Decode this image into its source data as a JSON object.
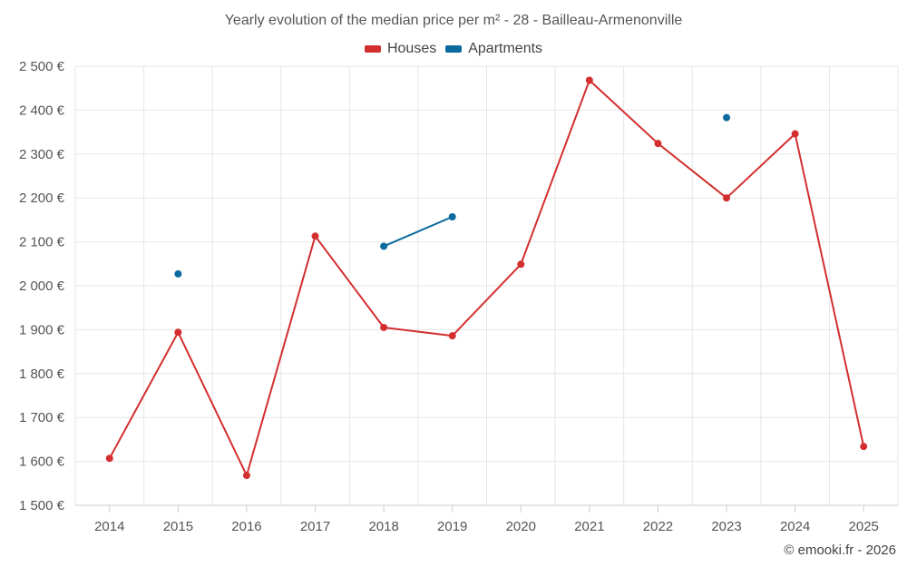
{
  "chart_data": {
    "type": "line",
    "title": "Yearly evolution of the median price per m² - 28 - Bailleau-Armenonville",
    "categories": [
      "2014",
      "2015",
      "2016",
      "2017",
      "2018",
      "2019",
      "2020",
      "2021",
      "2022",
      "2023",
      "2024",
      "2025"
    ],
    "ylim": [
      1500,
      2500
    ],
    "y_ticks": [
      1500,
      1600,
      1700,
      1800,
      1900,
      2000,
      2100,
      2200,
      2300,
      2400,
      2500
    ],
    "y_tick_labels": [
      "1 500 €",
      "1 600 €",
      "1 700 €",
      "1 800 €",
      "1 900 €",
      "2 000 €",
      "2 100 €",
      "2 200 €",
      "2 300 €",
      "2 400 €",
      "2 500 €"
    ],
    "grid": true,
    "legend_position": "top-center",
    "series": [
      {
        "name": "Houses",
        "color": "#d32f2f",
        "values": [
          1607,
          1894,
          1568,
          2113,
          1905,
          1886,
          2049,
          2468,
          2324,
          2200,
          2346,
          1634
        ]
      },
      {
        "name": "Apartments",
        "color": "#0b6a9e",
        "values": [
          null,
          2027,
          null,
          null,
          2090,
          2157,
          null,
          null,
          null,
          2383,
          null,
          null
        ]
      }
    ]
  },
  "credit": "© emooki.fr - 2026"
}
